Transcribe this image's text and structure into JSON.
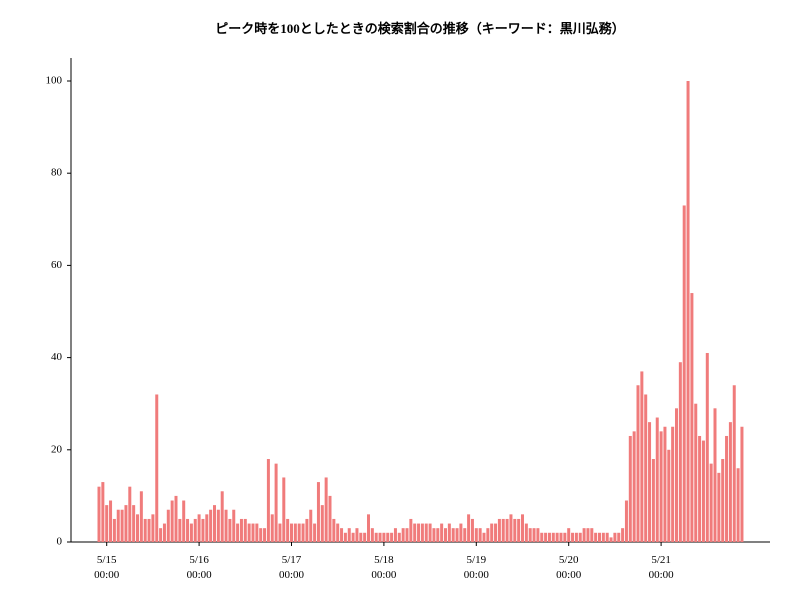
{
  "chart_data": {
    "type": "bar",
    "title": "ピーク時を100としたときの検索割合の推移（キーワード：黒川弘務）",
    "categories": [
      null,
      null,
      "5/15\n00:00",
      null,
      null,
      null,
      null,
      null,
      null,
      null,
      null,
      null,
      null,
      null,
      null,
      null,
      null,
      null,
      null,
      null,
      null,
      null,
      null,
      null,
      null,
      null,
      "5/16\n00:00",
      null,
      null,
      null,
      null,
      null,
      null,
      null,
      null,
      null,
      null,
      null,
      null,
      null,
      null,
      null,
      null,
      null,
      null,
      null,
      null,
      null,
      null,
      null,
      "5/17\n00:00",
      null,
      null,
      null,
      null,
      null,
      null,
      null,
      null,
      null,
      null,
      null,
      null,
      null,
      null,
      null,
      null,
      null,
      null,
      null,
      null,
      null,
      null,
      null,
      "5/18\n00:00",
      null,
      null,
      null,
      null,
      null,
      null,
      null,
      null,
      null,
      null,
      null,
      null,
      null,
      null,
      null,
      null,
      null,
      null,
      null,
      null,
      null,
      null,
      null,
      "5/19\n00:00",
      null,
      null,
      null,
      null,
      null,
      null,
      null,
      null,
      null,
      null,
      null,
      null,
      null,
      null,
      null,
      null,
      null,
      null,
      null,
      null,
      null,
      null,
      null,
      "5/20\n00:00",
      null,
      null,
      null,
      null,
      null,
      null,
      null,
      null,
      null,
      null,
      null,
      null,
      null,
      null,
      null,
      null,
      null,
      null,
      null,
      null,
      null,
      null,
      null,
      "5/21\n00:00",
      null,
      null,
      null,
      null,
      null,
      null,
      null,
      null,
      null,
      null,
      null,
      null,
      null,
      null,
      null,
      null,
      null,
      null,
      null,
      null,
      null
    ],
    "values": [
      12,
      13,
      8,
      9,
      5,
      7,
      7,
      8,
      12,
      8,
      6,
      11,
      5,
      5,
      6,
      32,
      3,
      4,
      7,
      9,
      10,
      5,
      9,
      5,
      4,
      5,
      6,
      5,
      6,
      7,
      8,
      7,
      11,
      7,
      5,
      7,
      4,
      5,
      5,
      4,
      4,
      4,
      3,
      3,
      18,
      6,
      17,
      4,
      14,
      5,
      4,
      4,
      4,
      4,
      5,
      7,
      4,
      13,
      8,
      14,
      10,
      5,
      4,
      3,
      2,
      3,
      2,
      3,
      2,
      2,
      6,
      3,
      2,
      2,
      2,
      2,
      2,
      3,
      2,
      3,
      3,
      5,
      4,
      4,
      4,
      4,
      4,
      3,
      3,
      4,
      3,
      4,
      3,
      3,
      4,
      3,
      6,
      5,
      3,
      3,
      2,
      3,
      4,
      4,
      5,
      5,
      5,
      6,
      5,
      5,
      6,
      4,
      3,
      3,
      3,
      2,
      2,
      2,
      2,
      2,
      2,
      2,
      3,
      2,
      2,
      2,
      3,
      3,
      3,
      2,
      2,
      2,
      2,
      1,
      2,
      2,
      3,
      9,
      23,
      24,
      34,
      37,
      32,
      26,
      18,
      27,
      24,
      25,
      20,
      25,
      29,
      39,
      73,
      100,
      54,
      30,
      23,
      22,
      41,
      17,
      29,
      15,
      18,
      23,
      26,
      34,
      16,
      25
    ],
    "color": "#f07b7b",
    "ylim": [
      0,
      100
    ],
    "yticks": [
      0,
      20,
      40,
      60,
      80,
      100
    ],
    "grid": false
  }
}
